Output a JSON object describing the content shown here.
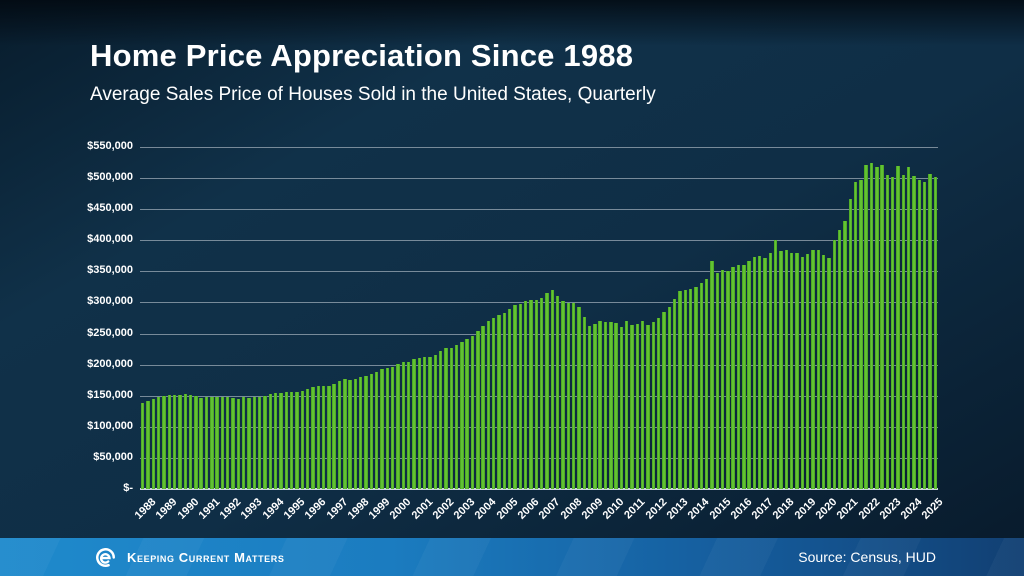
{
  "slide": {
    "title": "Home Price Appreciation Since 1988",
    "subtitle": "Average Sales Price of Houses Sold in the United States, Quarterly"
  },
  "footer": {
    "brand": "Keeping Current Matters",
    "source": "Source: Census, HUD"
  },
  "colors": {
    "background": "#0f2e46",
    "bar_fill": "#63c434",
    "bar_edge": "#459c1f",
    "gridline": "#a5b2bd",
    "text": "#ffffff",
    "footer_left": "#1f8acc",
    "footer_right": "#113f72"
  },
  "chart_data": {
    "type": "bar",
    "title": "Home Price Appreciation Since 1988",
    "subtitle": "Average Sales Price of Houses Sold in the United States, Quarterly",
    "frequency": "quarterly",
    "x_start": "1988 Q1",
    "x_end": "2025 Q2",
    "grid": true,
    "ylim": [
      0,
      550000
    ],
    "y_ticks": [
      "$550,000",
      "$500,000",
      "$450,000",
      "$400,000",
      "$350,000",
      "$300,000",
      "$250,000",
      "$200,000",
      "$150,000",
      "$100,000",
      "$50,000",
      "$-"
    ],
    "y_tick_values": [
      550000,
      500000,
      450000,
      400000,
      350000,
      300000,
      250000,
      200000,
      150000,
      100000,
      50000,
      0
    ],
    "years": [
      1988,
      1989,
      1990,
      1991,
      1992,
      1993,
      1994,
      1995,
      1996,
      1997,
      1998,
      1999,
      2000,
      2001,
      2002,
      2003,
      2004,
      2005,
      2006,
      2007,
      2008,
      2009,
      2010,
      2011,
      2012,
      2013,
      2014,
      2015,
      2016,
      2017,
      2018,
      2019,
      2020,
      2021,
      2022,
      2023,
      2024,
      2025
    ],
    "series": [
      {
        "name": "Average Sales Price of Houses Sold",
        "values": [
          138300,
          141500,
          145200,
          148400,
          148800,
          151200,
          151000,
          151900,
          153600,
          151700,
          149000,
          146800,
          147700,
          147700,
          148500,
          148000,
          148300,
          146100,
          144200,
          147500,
          146600,
          147800,
          147700,
          150200,
          152200,
          154600,
          153900,
          155900,
          155400,
          156700,
          158000,
          160800,
          163400,
          165400,
          166300,
          166200,
          169400,
          173200,
          176800,
          176000,
          177700,
          180400,
          181600,
          184600,
          187600,
          192500,
          195300,
          196600,
          200300,
          203600,
          205000,
          209000,
          210200,
          211900,
          212100,
          215900,
          222100,
          226200,
          226500,
          231800,
          235700,
          241500,
          246300,
          254300,
          262000,
          270400,
          274600,
          279700,
          283300,
          290200,
          295400,
          297400,
          301900,
          304500,
          303500,
          307900,
          314500,
          320500,
          311200,
          301800,
          298400,
          299200,
          292800,
          276000,
          262800,
          265200,
          271000,
          269300,
          268700,
          267700,
          260900,
          269600,
          263400,
          264600,
          270900,
          263900,
          267900,
          275000,
          284200,
          292200,
          305000,
          319000,
          320500,
          321000,
          325000,
          331000,
          337500,
          366000,
          348000,
          352000,
          350000,
          357000,
          360000,
          360500,
          366400,
          372500,
          375000,
          371100,
          380100,
          399700,
          382700,
          384300,
          380300,
          380000,
          373900,
          377200,
          383900,
          384500,
          376200,
          371100,
          400300,
          416400,
          431800,
          467000,
          493700,
          497300,
          520800,
          525000,
          518300,
          521500,
          505300,
          502300,
          518900,
          505000,
          517700,
          503000,
          497200,
          494200,
          507300,
          502200
        ]
      }
    ]
  }
}
